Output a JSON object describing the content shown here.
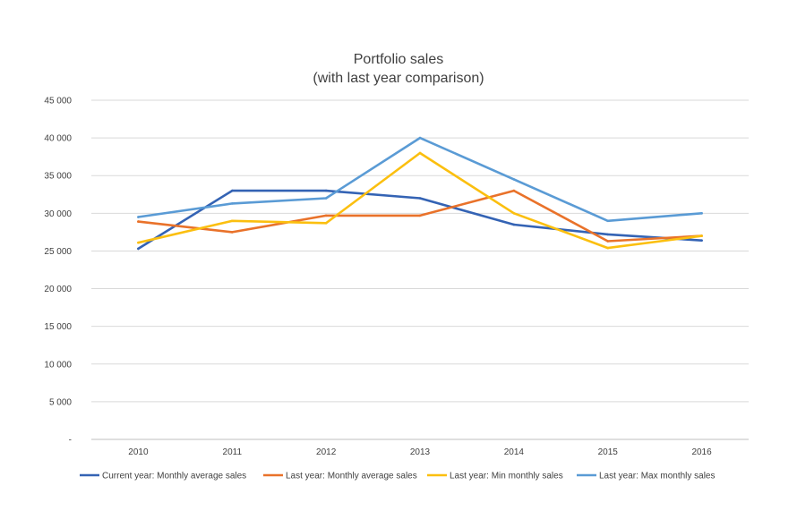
{
  "chart_data": {
    "type": "line",
    "title": "Portfolio sales",
    "subtitle": "(with last year comparison)",
    "xlabel": "",
    "ylabel": "",
    "categories": [
      "2010",
      "2011",
      "2012",
      "2013",
      "2014",
      "2015",
      "2016"
    ],
    "ylim": [
      0,
      45000
    ],
    "y_ticks": [
      "-",
      "5 000",
      "10 000",
      "15 000",
      "20 000",
      "25 000",
      "30 000",
      "35 000",
      "40 000",
      "45 000"
    ],
    "grid": true,
    "legend_position": "bottom",
    "series": [
      {
        "name": "Current year: Monthly average sales",
        "color": "#3463b4",
        "values": [
          25300,
          33000,
          33000,
          32000,
          28500,
          27200,
          26400
        ]
      },
      {
        "name": "Last year: Monthly average sales",
        "color": "#e9722a",
        "values": [
          28900,
          27500,
          29700,
          29700,
          33000,
          26300,
          27000
        ]
      },
      {
        "name": "Last year: Min monthly sales",
        "color": "#fbbf0f",
        "values": [
          26100,
          29000,
          28700,
          38000,
          30000,
          25400,
          27000
        ]
      },
      {
        "name": "Last year: Max monthly sales",
        "color": "#5a9bd5",
        "values": [
          29500,
          31300,
          32000,
          40000,
          34500,
          29000,
          30000
        ]
      }
    ]
  }
}
